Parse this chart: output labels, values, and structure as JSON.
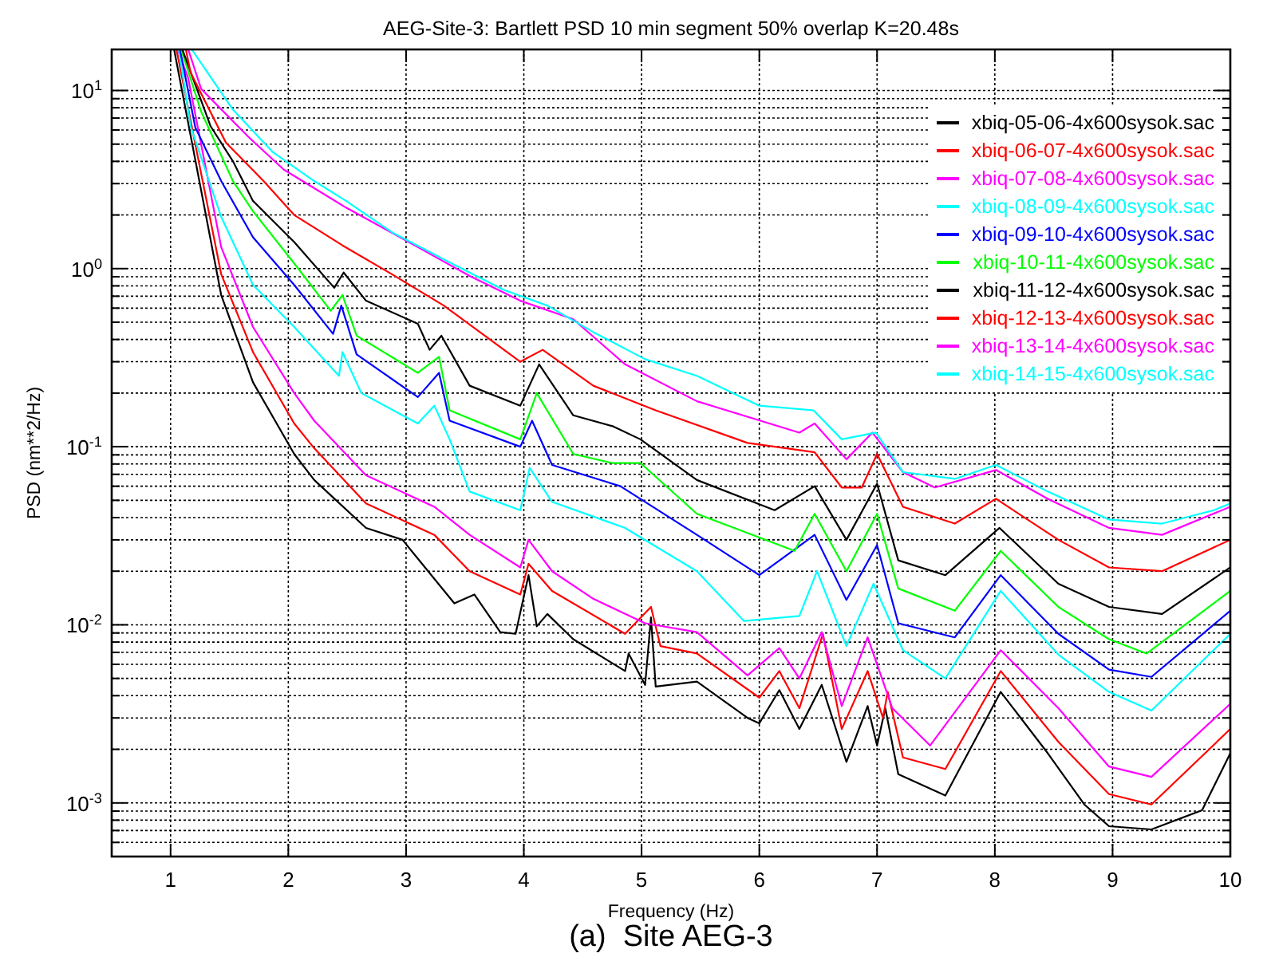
{
  "chart_data": {
    "type": "line",
    "title": "AEG-Site-3: Bartlett PSD 10 min segment 50% overlap K=20.48s",
    "xlabel": "Frequency (Hz)",
    "ylabel": "PSD (nm**2/Hz)",
    "annotations": [
      "(a)  Site AEG-3"
    ],
    "log": "y",
    "grid": true,
    "legend": "top right",
    "marker": "none",
    "line_style": "solid",
    "xlim": [
      0.5,
      10
    ],
    "xticks": [
      1,
      2,
      3,
      4,
      5,
      6,
      7,
      8,
      9,
      10
    ],
    "ylim": [
      0.0005,
      17
    ],
    "yticks": [
      {
        "value": 0.0005,
        "label": null
      },
      {
        "value": 0.0006,
        "label": null
      },
      {
        "value": 0.0007,
        "label": null
      },
      {
        "value": 0.0008,
        "label": null
      },
      {
        "value": 0.0009,
        "label": null
      },
      {
        "value": 0.001,
        "label": "10$^{-3}$"
      },
      {
        "value": 0.002,
        "label": null
      },
      {
        "value": 0.003,
        "label": null
      },
      {
        "value": 0.004,
        "label": null
      },
      {
        "value": 0.005,
        "label": null
      },
      {
        "value": 0.006,
        "label": null
      },
      {
        "value": 0.007,
        "label": null
      },
      {
        "value": 0.008,
        "label": null
      },
      {
        "value": 0.009,
        "label": null
      },
      {
        "value": 0.01,
        "label": "10$^{-2}$"
      },
      {
        "value": 0.02,
        "label": null
      },
      {
        "value": 0.03,
        "label": null
      },
      {
        "value": 0.04,
        "label": null
      },
      {
        "value": 0.05,
        "label": null
      },
      {
        "value": 0.06,
        "label": null
      },
      {
        "value": 0.07,
        "label": null
      },
      {
        "value": 0.08,
        "label": null
      },
      {
        "value": 0.09,
        "label": null
      },
      {
        "value": 0.1,
        "label": "10$^{-1}$"
      },
      {
        "value": 0.2,
        "label": null
      },
      {
        "value": 0.3,
        "label": null
      },
      {
        "value": 0.4,
        "label": null
      },
      {
        "value": 0.5,
        "label": null
      },
      {
        "value": 0.6,
        "label": null
      },
      {
        "value": 0.7,
        "label": null
      },
      {
        "value": 0.8,
        "label": null
      },
      {
        "value": 0.9,
        "label": null
      },
      {
        "value": 1,
        "label": "10$^{0}$"
      },
      {
        "value": 2,
        "label": null
      },
      {
        "value": 3,
        "label": null
      },
      {
        "value": 4,
        "label": null
      },
      {
        "value": 5,
        "label": null
      },
      {
        "value": 6,
        "label": null
      },
      {
        "value": 7,
        "label": null
      },
      {
        "value": 8,
        "label": null
      },
      {
        "value": 9,
        "label": null
      },
      {
        "value": 10,
        "label": "10$^{1}$"
      }
    ],
    "series": [
      {
        "name": "xbiq-05-06-4x600sysok.sac",
        "color": "#000000",
        "x": [
          1.03,
          1.43,
          1.7,
          2.05,
          2.22,
          2.66,
          2.97,
          3.41,
          3.58,
          3.8,
          3.93,
          4.04,
          4.11,
          4.2,
          4.42,
          4.86,
          4.89,
          5.03,
          5.08,
          5.12,
          5.47,
          5.9,
          6.0,
          6.17,
          6.34,
          6.53,
          6.74,
          6.92,
          7.0,
          7.07,
          7.18,
          7.58,
          8.05,
          8.45,
          8.76,
          8.97,
          9.33,
          9.76,
          10
        ],
        "values": [
          17,
          0.71,
          0.23,
          0.091,
          0.065,
          0.035,
          0.03,
          0.0132,
          0.0148,
          0.0091,
          0.0089,
          0.019,
          0.0098,
          0.0115,
          0.0083,
          0.0055,
          0.0069,
          0.0046,
          0.011,
          0.0045,
          0.0048,
          0.003,
          0.0028,
          0.0043,
          0.0026,
          0.0046,
          0.0017,
          0.0035,
          0.0021,
          0.0034,
          0.00145,
          0.0011,
          0.0042,
          0.0019,
          0.00098,
          0.00074,
          0.00071,
          0.00091,
          0.0019
        ]
      },
      {
        "name": "xbiq-06-07-4x600sysok.sac",
        "color": "#ff0000",
        "x": [
          1.05,
          1.43,
          1.7,
          2.05,
          2.22,
          2.66,
          3.24,
          3.54,
          3.97,
          4.04,
          4.24,
          4.86,
          5.08,
          5.16,
          5.47,
          6.0,
          6.17,
          6.34,
          6.54,
          6.7,
          6.92,
          7.05,
          7.09,
          7.22,
          7.58,
          8.05,
          8.54,
          8.97,
          9.33,
          10
        ],
        "values": [
          17,
          0.93,
          0.34,
          0.135,
          0.098,
          0.048,
          0.032,
          0.02,
          0.0148,
          0.022,
          0.0155,
          0.0089,
          0.0126,
          0.0076,
          0.0069,
          0.0039,
          0.0055,
          0.0034,
          0.0089,
          0.0026,
          0.0055,
          0.003,
          0.0042,
          0.0018,
          0.00155,
          0.0055,
          0.0022,
          0.00112,
          0.00098,
          0.0026
        ]
      },
      {
        "name": "xbiq-07-08-4x600sysok.sac",
        "color": "#ff00ff",
        "x": [
          1.06,
          1.15,
          1.43,
          1.7,
          2.05,
          2.22,
          2.66,
          3.24,
          3.54,
          3.97,
          4.04,
          4.24,
          4.59,
          5.03,
          5.47,
          5.9,
          6.17,
          6.34,
          6.53,
          6.7,
          6.92,
          7.13,
          7.45,
          8.05,
          8.54,
          8.97,
          9.33,
          10
        ],
        "values": [
          17,
          11.7,
          1.32,
          0.47,
          0.2,
          0.14,
          0.069,
          0.046,
          0.032,
          0.021,
          0.03,
          0.02,
          0.014,
          0.0102,
          0.0091,
          0.0052,
          0.0074,
          0.005,
          0.0091,
          0.0035,
          0.0085,
          0.0034,
          0.0021,
          0.0072,
          0.0034,
          0.0016,
          0.0014,
          0.0036
        ]
      },
      {
        "name": "xbiq-08-09-4x600sysok.sac",
        "color": "#00ffff",
        "x": [
          1.07,
          1.17,
          1.43,
          1.7,
          2.05,
          2.43,
          2.46,
          2.62,
          3.1,
          3.24,
          3.37,
          3.54,
          3.97,
          4.05,
          4.24,
          4.86,
          5.47,
          5.87,
          6.34,
          6.49,
          6.74,
          6.97,
          7.22,
          7.58,
          8.05,
          8.54,
          8.97,
          9.33,
          10
        ],
        "values": [
          17,
          6.3,
          1.95,
          0.81,
          0.47,
          0.25,
          0.34,
          0.2,
          0.135,
          0.17,
          0.11,
          0.056,
          0.044,
          0.076,
          0.049,
          0.035,
          0.02,
          0.0105,
          0.0112,
          0.02,
          0.0076,
          0.017,
          0.0072,
          0.005,
          0.0155,
          0.0068,
          0.0042,
          0.0033,
          0.0089
        ]
      },
      {
        "name": "xbiq-09-10-4x600sysok.sac",
        "color": "#0000ff",
        "x": [
          1.08,
          1.21,
          1.43,
          1.7,
          2.05,
          2.38,
          2.45,
          2.58,
          3.1,
          3.28,
          3.37,
          3.97,
          4.07,
          4.24,
          4.82,
          5.47,
          6.0,
          6.47,
          6.74,
          7.0,
          7.18,
          7.66,
          8.05,
          8.54,
          8.97,
          9.33,
          10
        ],
        "values": [
          17,
          6.2,
          3.1,
          1.5,
          0.81,
          0.43,
          0.62,
          0.33,
          0.19,
          0.26,
          0.14,
          0.1,
          0.14,
          0.079,
          0.06,
          0.032,
          0.019,
          0.032,
          0.0138,
          0.028,
          0.0102,
          0.0085,
          0.019,
          0.0089,
          0.0056,
          0.0051,
          0.012
        ]
      },
      {
        "name": "xbiq-10-11-4x600sysok.sac",
        "color": "#00ff00",
        "x": [
          1.09,
          1.26,
          1.53,
          1.7,
          2.05,
          2.36,
          2.46,
          2.58,
          3.1,
          3.28,
          3.37,
          3.97,
          4.11,
          4.42,
          4.75,
          4.99,
          5.47,
          6.3,
          6.47,
          6.74,
          7.0,
          7.18,
          7.66,
          8.05,
          8.54,
          8.97,
          9.29,
          10
        ],
        "values": [
          17,
          7.6,
          3.1,
          2.1,
          1.07,
          0.58,
          0.71,
          0.42,
          0.26,
          0.32,
          0.16,
          0.11,
          0.2,
          0.091,
          0.081,
          0.081,
          0.042,
          0.026,
          0.042,
          0.02,
          0.042,
          0.016,
          0.012,
          0.026,
          0.0126,
          0.0083,
          0.0069,
          0.0155
        ]
      },
      {
        "name": "xbiq-11-12-4x600sysok.sac",
        "color": "#000000",
        "x": [
          1.1,
          1.34,
          1.53,
          1.7,
          2.05,
          2.39,
          2.47,
          2.66,
          3.1,
          3.2,
          3.3,
          3.54,
          3.97,
          4.13,
          4.42,
          4.76,
          4.99,
          5.47,
          6.13,
          6.47,
          6.74,
          7.0,
          7.18,
          7.58,
          8.04,
          8.54,
          8.97,
          9.42,
          10
        ],
        "values": [
          17,
          6.3,
          4.0,
          2.4,
          1.41,
          0.78,
          0.95,
          0.66,
          0.49,
          0.35,
          0.42,
          0.22,
          0.17,
          0.29,
          0.15,
          0.13,
          0.11,
          0.065,
          0.044,
          0.06,
          0.03,
          0.062,
          0.023,
          0.019,
          0.035,
          0.017,
          0.0126,
          0.0115,
          0.021
        ]
      },
      {
        "name": "xbiq-12-13-4x600sysok.sac",
        "color": "#ff0000",
        "x": [
          1.13,
          1.17,
          1.47,
          1.79,
          2.05,
          2.46,
          2.88,
          3.32,
          3.97,
          4.16,
          4.59,
          5.12,
          5.9,
          6.47,
          6.7,
          6.87,
          7.0,
          7.22,
          7.66,
          8.01,
          8.54,
          8.97,
          9.42,
          10
        ],
        "values": [
          17,
          12.6,
          5.1,
          3.1,
          2.0,
          1.35,
          0.93,
          0.62,
          0.3,
          0.35,
          0.22,
          0.16,
          0.105,
          0.093,
          0.059,
          0.059,
          0.091,
          0.046,
          0.037,
          0.051,
          0.03,
          0.021,
          0.02,
          0.03
        ]
      },
      {
        "name": "xbiq-13-14-4x600sysok.sac",
        "color": "#ff00ff",
        "x": [
          1.15,
          1.26,
          1.66,
          1.96,
          2.49,
          3.1,
          3.54,
          3.97,
          4.42,
          4.86,
          5.47,
          6.34,
          6.47,
          6.74,
          6.96,
          7.22,
          7.49,
          8.01,
          8.45,
          8.97,
          9.42,
          10
        ],
        "values": [
          17,
          10.2,
          5.5,
          3.6,
          2.2,
          1.32,
          0.91,
          0.66,
          0.52,
          0.29,
          0.18,
          0.12,
          0.135,
          0.085,
          0.12,
          0.072,
          0.059,
          0.074,
          0.051,
          0.035,
          0.032,
          0.046
        ]
      },
      {
        "name": "xbiq-14-15-4x600sysok.sac",
        "color": "#00ffff",
        "x": [
          1.18,
          1.53,
          1.87,
          2.22,
          2.49,
          2.88,
          3.41,
          3.83,
          4.2,
          4.59,
          5.03,
          5.47,
          6.0,
          6.46,
          6.7,
          6.99,
          7.22,
          7.66,
          8.01,
          8.45,
          8.97,
          9.42,
          9.86,
          10
        ],
        "values": [
          17,
          7.8,
          4.5,
          3.1,
          2.4,
          1.6,
          1.05,
          0.76,
          0.62,
          0.44,
          0.31,
          0.25,
          0.17,
          0.16,
          0.11,
          0.12,
          0.072,
          0.066,
          0.079,
          0.056,
          0.039,
          0.037,
          0.044,
          0.048
        ]
      }
    ]
  }
}
